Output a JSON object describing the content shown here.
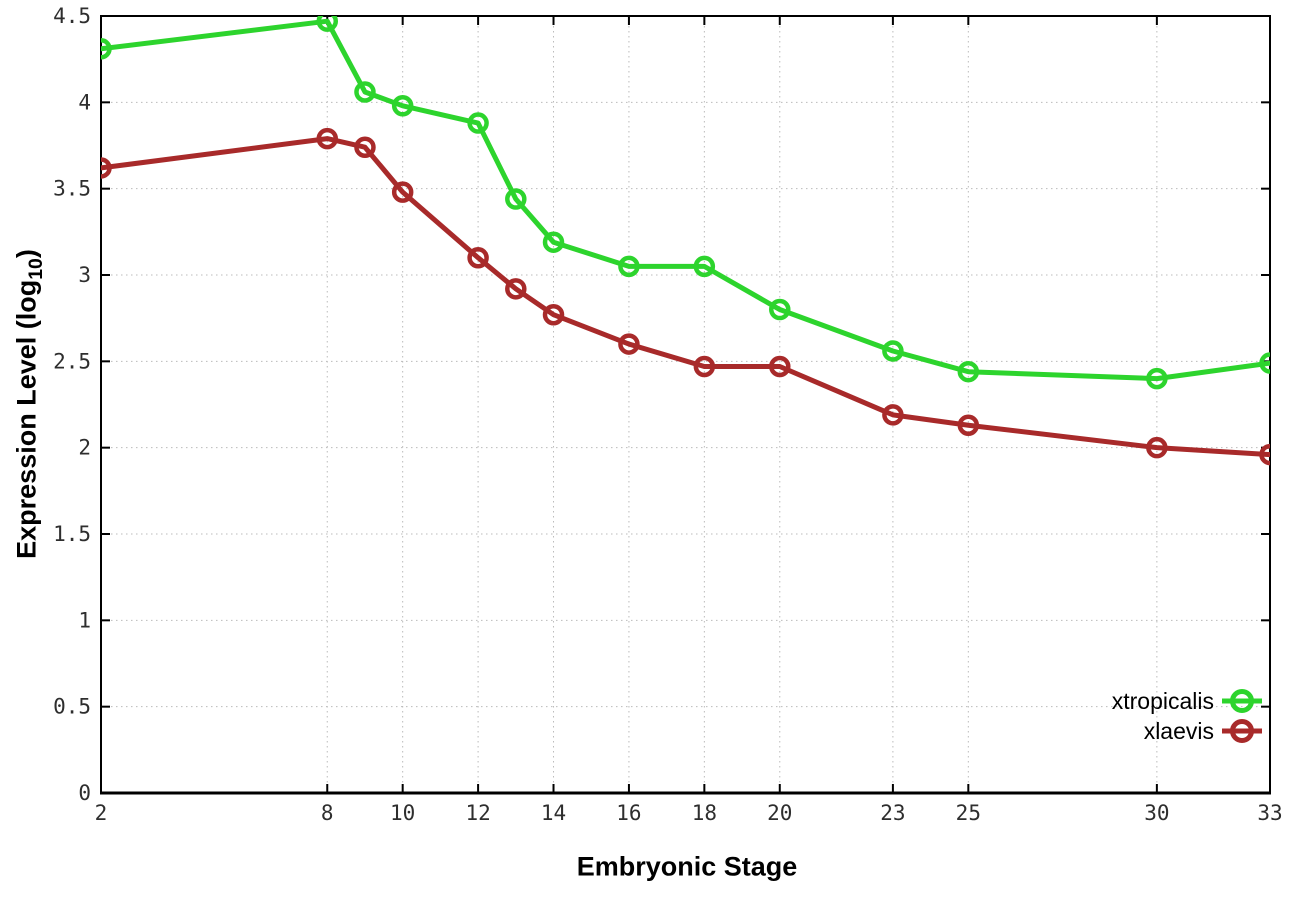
{
  "figure": {
    "xlabel": "Embryonic Stage",
    "ylabel_prefix": "Expression Level (log",
    "ylabel_subscript": "10",
    "ylabel_suffix": ")",
    "background_color": "#ffffff",
    "border_color": "#000000",
    "grid_color": "#bbbbbb",
    "tick_label_color": "#2e2e2e"
  },
  "chart_data": {
    "type": "line",
    "title": "",
    "xlabel": "Embryonic Stage",
    "ylabel": "Expression Level (log10)",
    "x": [
      2,
      8,
      9,
      10,
      12,
      13,
      14,
      16,
      18,
      20,
      23,
      25,
      30,
      33
    ],
    "series": [
      {
        "name": "xtropicalis",
        "color": "#2dd42d",
        "marker": "open-circle",
        "values": [
          4.31,
          4.47,
          4.06,
          3.98,
          3.88,
          3.44,
          3.19,
          3.05,
          3.05,
          2.8,
          2.56,
          2.44,
          2.4,
          2.49
        ]
      },
      {
        "name": "xlaevis",
        "color": "#a82a2a",
        "marker": "open-circle",
        "values": [
          3.62,
          3.79,
          3.74,
          3.48,
          3.1,
          2.92,
          2.77,
          2.6,
          2.47,
          2.47,
          2.19,
          2.13,
          2.0,
          1.96
        ]
      }
    ],
    "xticks": [
      2,
      8,
      10,
      12,
      14,
      16,
      18,
      20,
      23,
      25,
      30,
      33
    ],
    "yticks": [
      0,
      0.5,
      1,
      1.5,
      2,
      2.5,
      3,
      3.5,
      4,
      4.5
    ],
    "xlim": [
      2,
      33
    ],
    "ylim": [
      0,
      4.5
    ],
    "grid": true,
    "grid_style": "dotted",
    "legend_position": "bottom-right"
  }
}
